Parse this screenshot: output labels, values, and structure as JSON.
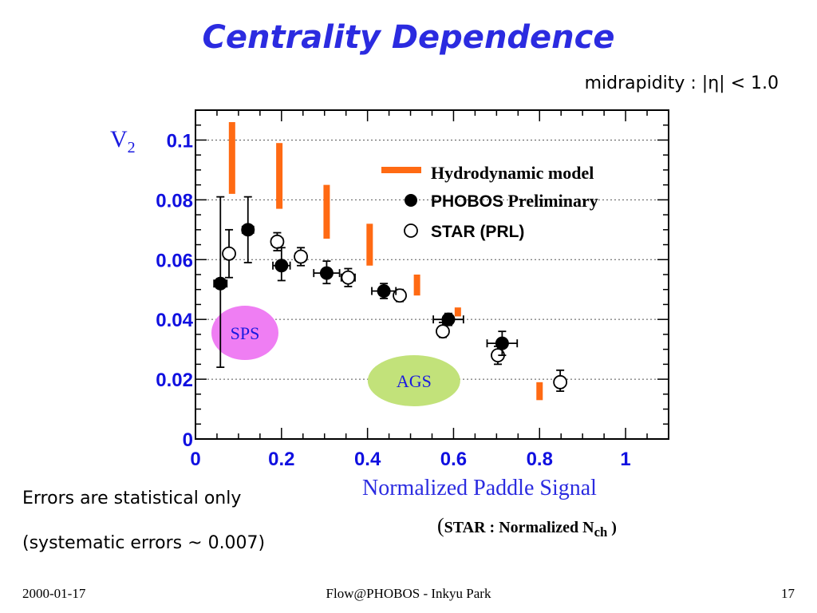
{
  "slide": {
    "title": "Centrality Dependence",
    "subtitle": "midrapidity : |η| < 1.0",
    "ylabel_main": "V",
    "ylabel_sub": "2",
    "xlabel": "Normalized Paddle Signal",
    "xsub_open": "(",
    "xsub_text": "STAR : Normalized N",
    "xsub_sub": "ch",
    "xsub_close": " )",
    "note1": "Errors are statistical only",
    "note2": "(systematic errors ~ 0.007)",
    "footer_date": "2000-01-17",
    "footer_center": "Flow@PHOBOS - Inkyu Park",
    "footer_page": "17"
  },
  "colors": {
    "title": "#2b2be0",
    "tick_labels": "#1010e0",
    "hydro": "#ff6a13",
    "sps": "#ef7ef3",
    "ags": "#c2e27a"
  },
  "chart_data": {
    "type": "scatter",
    "xlim": [
      0,
      1.1
    ],
    "ylim": [
      0,
      0.11
    ],
    "x_ticks": [
      "0",
      "0.2",
      "0.4",
      "0.6",
      "0.8",
      "1"
    ],
    "x_tick_values": [
      0,
      0.2,
      0.4,
      0.6,
      0.8,
      1.0
    ],
    "y_ticks": [
      "0",
      "0.02",
      "0.04",
      "0.06",
      "0.08",
      "0.1"
    ],
    "y_tick_values": [
      0,
      0.02,
      0.04,
      0.06,
      0.08,
      0.1
    ],
    "grid": "horizontal dotted",
    "legend_placement": "top-right",
    "legend": {
      "hydro": "Hydrodynamic model",
      "phobos": "PHOBOS",
      "preliminary": " Preliminary",
      "star": "STAR (PRL)"
    },
    "series": [
      {
        "name": "Hydrodynamic model",
        "kind": "range",
        "points": [
          {
            "x": 0.085,
            "lo": 0.082,
            "hi": 0.106
          },
          {
            "x": 0.195,
            "lo": 0.077,
            "hi": 0.099
          },
          {
            "x": 0.305,
            "lo": 0.067,
            "hi": 0.085
          },
          {
            "x": 0.405,
            "lo": 0.058,
            "hi": 0.072
          },
          {
            "x": 0.515,
            "lo": 0.048,
            "hi": 0.055
          },
          {
            "x": 0.61,
            "lo": 0.041,
            "hi": 0.044
          },
          {
            "x": 0.8,
            "lo": 0.013,
            "hi": 0.019
          }
        ]
      },
      {
        "name": "PHOBOS",
        "kind": "filled",
        "points": [
          {
            "x": 0.058,
            "y": 0.052,
            "xerr": 0.015,
            "ylo": 0.024,
            "yhi": 0.081
          },
          {
            "x": 0.122,
            "y": 0.07,
            "xerr": 0.013,
            "ylo": 0.059,
            "yhi": 0.081
          },
          {
            "x": 0.2,
            "y": 0.058,
            "xerr": 0.02,
            "ylo": 0.053,
            "yhi": 0.064
          },
          {
            "x": 0.305,
            "y": 0.0555,
            "xerr": 0.03,
            "ylo": 0.052,
            "yhi": 0.0595
          },
          {
            "x": 0.438,
            "y": 0.0495,
            "xerr": 0.028,
            "ylo": 0.047,
            "yhi": 0.052
          },
          {
            "x": 0.588,
            "y": 0.04,
            "xerr": 0.035,
            "ylo": 0.038,
            "yhi": 0.042
          },
          {
            "x": 0.713,
            "y": 0.032,
            "xerr": 0.035,
            "ylo": 0.028,
            "yhi": 0.036
          }
        ]
      },
      {
        "name": "STAR (PRL)",
        "kind": "open",
        "points": [
          {
            "x": 0.078,
            "y": 0.062,
            "xerr": 0.0,
            "ylo": 0.054,
            "yhi": 0.07
          },
          {
            "x": 0.19,
            "y": 0.066,
            "xerr": 0.013,
            "ylo": 0.063,
            "yhi": 0.069
          },
          {
            "x": 0.245,
            "y": 0.061,
            "xerr": 0.013,
            "ylo": 0.058,
            "yhi": 0.064
          },
          {
            "x": 0.355,
            "y": 0.054,
            "xerr": 0.016,
            "ylo": 0.051,
            "yhi": 0.057
          },
          {
            "x": 0.475,
            "y": 0.048,
            "xerr": 0.0,
            "ylo": 0.046,
            "yhi": 0.05
          },
          {
            "x": 0.575,
            "y": 0.036,
            "xerr": 0.0,
            "ylo": 0.034,
            "yhi": 0.039
          },
          {
            "x": 0.703,
            "y": 0.028,
            "xerr": 0.0,
            "ylo": 0.025,
            "yhi": 0.031
          },
          {
            "x": 0.848,
            "y": 0.019,
            "xerr": 0.0,
            "ylo": 0.016,
            "yhi": 0.023
          }
        ]
      }
    ],
    "annotations": [
      {
        "label": "SPS",
        "x": 0.115,
        "y": 0.0355,
        "color": "sps"
      },
      {
        "label": "AGS",
        "x": 0.508,
        "y": 0.0195,
        "color": "ags"
      }
    ]
  }
}
